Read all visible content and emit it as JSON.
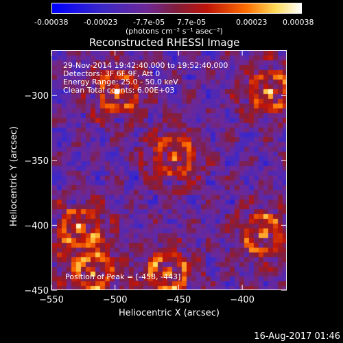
{
  "colorbar": {
    "tick_labels": [
      "-0.00038",
      "-0.00023",
      "-7.7e-05",
      "7.7e-05",
      "0.00023",
      "0.00038"
    ],
    "unit": "(photons cm⁻² s⁻¹ asec⁻²)",
    "colors": [
      "#0000ff",
      "#4b3a9a",
      "#7a2f8a",
      "#b01c1c",
      "#ff6a00",
      "#ffe070",
      "#ffffff"
    ]
  },
  "chart_data": {
    "type": "heatmap",
    "title": "Reconstructed RHESSI Image",
    "xlabel": "Heliocentric X (arcsec)",
    "ylabel": "Heliocentric Y (arcsec)",
    "xlim": [
      -550,
      -365
    ],
    "ylim": [
      -450,
      -265
    ],
    "x_ticks": [
      -550,
      -500,
      -450,
      -400
    ],
    "y_ticks": [
      -300,
      -350,
      -400,
      -450
    ],
    "vmin": -0.00038,
    "vmax": 0.00038,
    "annotations": [
      "29-Nov-2014 19:42:40.000 to 19:52:40.000",
      "Detectors: 3F 6F 9F, Att 0",
      "Energy Range: 25.0 - 50.0 keV",
      "Clean     Total counts: 6.00E+03"
    ],
    "peak_label": "Position of Peak = [-458, -443]",
    "bright_sources": [
      {
        "x": -455,
        "y": -345
      },
      {
        "x": -460,
        "y": -435
      },
      {
        "x": -385,
        "y": -405
      },
      {
        "x": -530,
        "y": -400
      },
      {
        "x": -520,
        "y": -435
      },
      {
        "x": -380,
        "y": -295
      },
      {
        "x": -500,
        "y": -295
      }
    ]
  },
  "footer": {
    "timestamp": "16-Aug-2017 01:46"
  }
}
